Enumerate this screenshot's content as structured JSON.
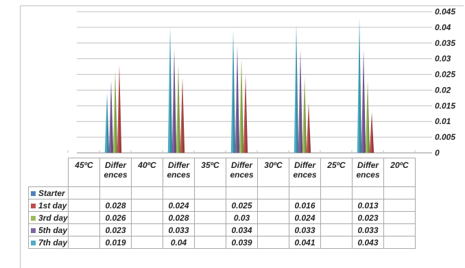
{
  "chart_data": {
    "type": "bar",
    "categories": [
      "45ºC",
      "Differ ences",
      "40ºC",
      "Differ ences",
      "35ºC",
      "Differ ences",
      "30ºC",
      "Differ ences",
      "25ºC",
      "Differ ences",
      "20ºC"
    ],
    "category_lines": [
      [
        "45ºC"
      ],
      [
        "Differ",
        "ences"
      ],
      [
        "40ºC"
      ],
      [
        "Differ",
        "ences"
      ],
      [
        "35ºC"
      ],
      [
        "Differ",
        "ences"
      ],
      [
        "30ºC"
      ],
      [
        "Differ",
        "ences"
      ],
      [
        "25ºC"
      ],
      [
        "Differ",
        "ences"
      ],
      [
        "20ºC"
      ]
    ],
    "series": [
      {
        "name": "Starter",
        "color": "#4f81bd",
        "values": [
          null,
          null,
          null,
          null,
          null,
          null,
          null,
          null,
          null,
          null,
          null
        ],
        "labels": [
          "",
          "",
          "",
          "",
          "",
          "",
          "",
          "",
          "",
          "",
          ""
        ]
      },
      {
        "name": "1st day",
        "color": "#c0504d",
        "values": [
          null,
          0.028,
          null,
          0.024,
          null,
          0.025,
          null,
          0.016,
          null,
          0.013,
          null
        ],
        "labels": [
          "",
          "0.028",
          "",
          "0.024",
          "",
          "0.025",
          "",
          "0.016",
          "",
          "0.013",
          ""
        ]
      },
      {
        "name": "3rd day",
        "color": "#9bbb59",
        "values": [
          null,
          0.026,
          null,
          0.028,
          null,
          0.03,
          null,
          0.024,
          null,
          0.023,
          null
        ],
        "labels": [
          "",
          "0.026",
          "",
          "0.028",
          "",
          "0.03",
          "",
          "0.024",
          "",
          "0.023",
          ""
        ]
      },
      {
        "name": "5th day",
        "color": "#8064a2",
        "values": [
          null,
          0.023,
          null,
          0.033,
          null,
          0.034,
          null,
          0.033,
          null,
          0.033,
          null
        ],
        "labels": [
          "",
          "0.023",
          "",
          "0.033",
          "",
          "0.034",
          "",
          "0.033",
          "",
          "0.033",
          ""
        ]
      },
      {
        "name": "7th day",
        "color": "#4bacc6",
        "values": [
          null,
          0.019,
          null,
          0.04,
          null,
          0.039,
          null,
          0.041,
          null,
          0.043,
          null
        ],
        "labels": [
          "",
          "0.019",
          "",
          "0.04",
          "",
          "0.039",
          "",
          "0.041",
          "",
          "0.043",
          ""
        ]
      }
    ],
    "y_ticks": [
      "0",
      "0.005",
      "0.01",
      "0.015",
      "0.02",
      "0.025",
      "0.03",
      "0.035",
      "0.04",
      "0.045"
    ],
    "ylim": [
      0,
      0.045
    ],
    "y_axis_position": "right",
    "grid": true,
    "legend": "data table",
    "bar_shape": "3D cone"
  }
}
